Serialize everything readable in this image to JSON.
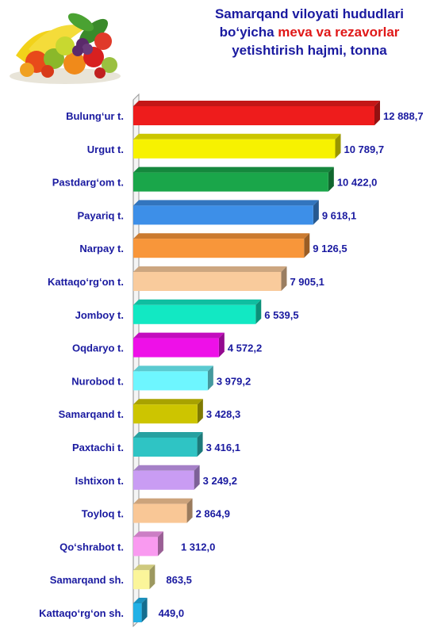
{
  "header": {
    "title_line1": "Samarqand viloyati hududlari",
    "title_line2_pre": "bo‘yicha ",
    "title_line2_accent": "meva va rezavorlar",
    "title_line3": "yetishtirish hajmi, tonna",
    "accent_color": "#e01818",
    "text_color": "#1a1aa0",
    "image_icon": "fruit-basket-icon"
  },
  "chart_data": {
    "type": "bar",
    "orientation": "horizontal",
    "title": "Samarqand viloyati hududlari bo‘yicha meva va rezavorlar yetishtirish hajmi, tonna",
    "xlim": [
      0,
      13000
    ],
    "grid": false,
    "categories": [
      "Bulung‘ur t.",
      "Urgut t.",
      "Pastdarg‘om t.",
      "Payariq t.",
      "Narpay t.",
      "Kattaqo‘rg‘on t.",
      "Jomboy t.",
      "Oqdaryo t.",
      "Nurobod t.",
      "Samarqand t.",
      "Paxtachi t.",
      "Ishtixon t.",
      "Toyloq t.",
      "Qo‘shrabot t.",
      "Samarqand sh.",
      "Kattaqo‘rg‘on sh."
    ],
    "values": [
      12888.7,
      10789.7,
      10422.0,
      9618.1,
      9126.5,
      7905.1,
      6539.5,
      4572.2,
      3979.2,
      3428.3,
      3416.1,
      3249.2,
      2864.9,
      1312.0,
      863.5,
      449.0
    ],
    "value_labels": [
      "12 888,7",
      "10 789,7",
      "10 422,0",
      "9 618,1",
      "9 126,5",
      "7 905,1",
      "6 539,5",
      "4 572,2",
      "3 979,2",
      "3 428,3",
      "3 416,1",
      "3 249,2",
      "2 864,9",
      "1 312,0",
      "863,5",
      "449,0"
    ],
    "colors": [
      "#ee1c1c",
      "#f7f200",
      "#1aa64a",
      "#3d8fe8",
      "#f8963a",
      "#f9cb9c",
      "#12e8c3",
      "#ee10e8",
      "#6ef6ff",
      "#cdc500",
      "#2fc4c4",
      "#c99cf3",
      "#f9c796",
      "#f99af0",
      "#fbf59a",
      "#22b1e6"
    ]
  }
}
